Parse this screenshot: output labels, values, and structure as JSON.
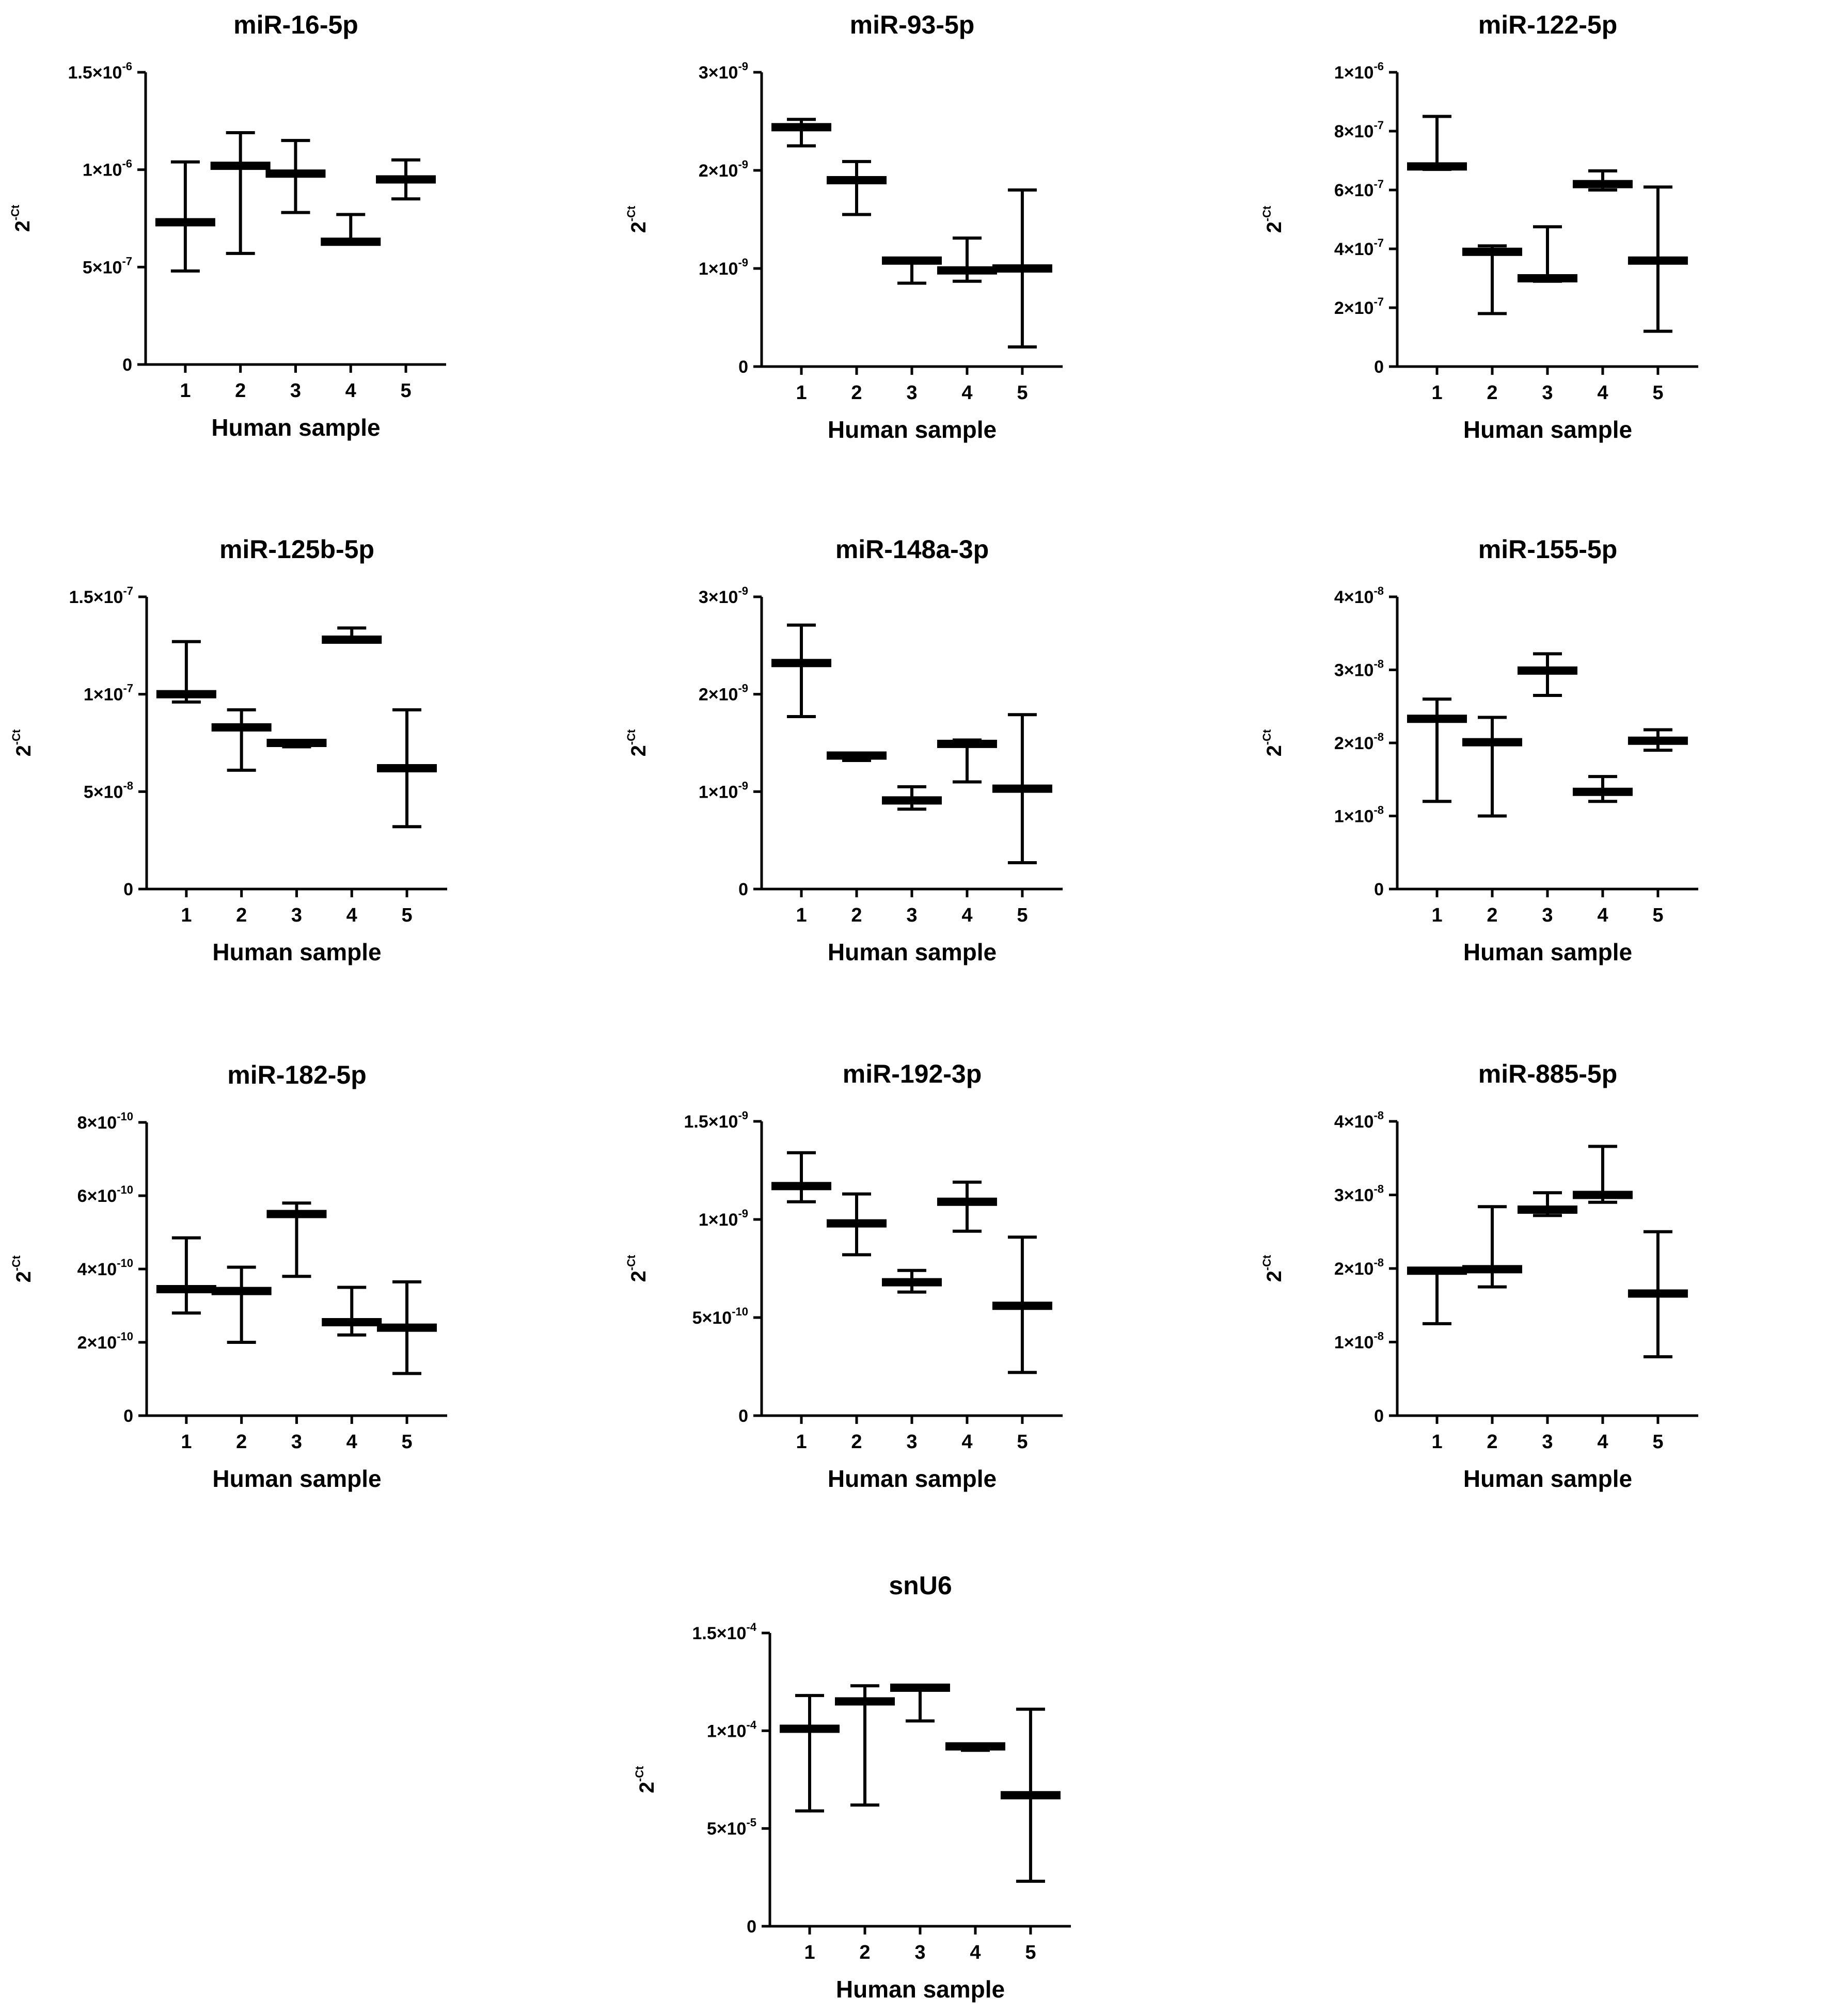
{
  "chart_data": [
    {
      "type": "box-range",
      "title": "miR-16-5p",
      "xlabel": "Human sample",
      "ylabel": {
        "base": "2",
        "sup": "-Ct"
      },
      "categories": [
        "1",
        "2",
        "3",
        "4",
        "5"
      ],
      "ylim": [
        0,
        1.5e-06
      ],
      "yticks": [
        {
          "value": 0,
          "mant": "0",
          "exp": ""
        },
        {
          "value": 5e-07,
          "mant": "5×10",
          "exp": "-7"
        },
        {
          "value": 1e-06,
          "mant": "1×10",
          "exp": "-6"
        },
        {
          "value": 1.5e-06,
          "mant": "1.5×10",
          "exp": "-6"
        }
      ],
      "series": [
        {
          "name": "range",
          "min": [
            4.8e-07,
            5.7e-07,
            7.8e-07,
            6.2e-07,
            8.5e-07
          ],
          "median": [
            7.3e-07,
            1.02e-06,
            9.8e-07,
            6.3e-07,
            9.5e-07
          ],
          "max": [
            1.04e-06,
            1.19e-06,
            1.15e-06,
            7.7e-07,
            1.05e-06
          ]
        }
      ]
    },
    {
      "type": "box-range",
      "title": "miR-93-5p",
      "xlabel": "Human sample",
      "ylabel": {
        "base": "2",
        "sup": "-Ct"
      },
      "categories": [
        "1",
        "2",
        "3",
        "4",
        "5"
      ],
      "ylim": [
        0,
        3e-09
      ],
      "yticks": [
        {
          "value": 0,
          "mant": "0",
          "exp": ""
        },
        {
          "value": 1e-09,
          "mant": "1×10",
          "exp": "-9"
        },
        {
          "value": 2e-09,
          "mant": "2×10",
          "exp": "-9"
        },
        {
          "value": 3e-09,
          "mant": "3×10",
          "exp": "-9"
        }
      ],
      "series": [
        {
          "name": "range",
          "min": [
            2.25e-09,
            1.55e-09,
            8.5e-10,
            8.7e-10,
            2e-10
          ],
          "median": [
            2.44e-09,
            1.9e-09,
            1.08e-09,
            9.8e-10,
            1e-09
          ],
          "max": [
            2.52e-09,
            2.09e-09,
            1.09e-09,
            1.31e-09,
            1.8e-09
          ]
        }
      ]
    },
    {
      "type": "box-range",
      "title": "miR-122-5p",
      "xlabel": "Human sample",
      "ylabel": {
        "base": "2",
        "sup": "-Ct"
      },
      "categories": [
        "1",
        "2",
        "3",
        "4",
        "5"
      ],
      "ylim": [
        0,
        1e-06
      ],
      "yticks": [
        {
          "value": 0,
          "mant": "0",
          "exp": ""
        },
        {
          "value": 2e-07,
          "mant": "2×10",
          "exp": "-7"
        },
        {
          "value": 4e-07,
          "mant": "4×10",
          "exp": "-7"
        },
        {
          "value": 6e-07,
          "mant": "6×10",
          "exp": "-7"
        },
        {
          "value": 8e-07,
          "mant": "8×10",
          "exp": "-7"
        },
        {
          "value": 1e-06,
          "mant": "1×10",
          "exp": "-6"
        }
      ],
      "series": [
        {
          "name": "range",
          "min": [
            6.7e-07,
            1.8e-07,
            2.9e-07,
            6e-07,
            1.2e-07
          ],
          "median": [
            6.8e-07,
            3.9e-07,
            3e-07,
            6.2e-07,
            3.6e-07
          ],
          "max": [
            8.5e-07,
            4.1e-07,
            4.75e-07,
            6.65e-07,
            6.1e-07
          ]
        }
      ]
    },
    {
      "type": "box-range",
      "title": "miR-125b-5p",
      "xlabel": "Human sample",
      "ylabel": {
        "base": "2",
        "sup": "-Ct"
      },
      "categories": [
        "1",
        "2",
        "3",
        "4",
        "5"
      ],
      "ylim": [
        0,
        1.5e-07
      ],
      "yticks": [
        {
          "value": 0,
          "mant": "0",
          "exp": ""
        },
        {
          "value": 5e-08,
          "mant": "5×10",
          "exp": "-8"
        },
        {
          "value": 1e-07,
          "mant": "1×10",
          "exp": "-7"
        },
        {
          "value": 1.5e-07,
          "mant": "1.5×10",
          "exp": "-7"
        }
      ],
      "series": [
        {
          "name": "range",
          "min": [
            9.6e-08,
            6.1e-08,
            7.3e-08,
            1.27e-07,
            3.2e-08
          ],
          "median": [
            1e-07,
            8.3e-08,
            7.5e-08,
            1.28e-07,
            6.2e-08
          ],
          "max": [
            1.27e-07,
            9.2e-08,
            7.6e-08,
            1.34e-07,
            9.2e-08
          ]
        }
      ]
    },
    {
      "type": "box-range",
      "title": "miR-148a-3p",
      "xlabel": "Human sample",
      "ylabel": {
        "base": "2",
        "sup": "-Ct"
      },
      "categories": [
        "1",
        "2",
        "3",
        "4",
        "5"
      ],
      "ylim": [
        0,
        3e-09
      ],
      "yticks": [
        {
          "value": 0,
          "mant": "0",
          "exp": ""
        },
        {
          "value": 1e-09,
          "mant": "1×10",
          "exp": "-9"
        },
        {
          "value": 2e-09,
          "mant": "2×10",
          "exp": "-9"
        },
        {
          "value": 3e-09,
          "mant": "3×10",
          "exp": "-9"
        }
      ],
      "series": [
        {
          "name": "range",
          "min": [
            1.77e-09,
            1.32e-09,
            8.2e-10,
            1.1e-09,
            2.7e-10
          ],
          "median": [
            2.32e-09,
            1.37e-09,
            9.1e-10,
            1.49e-09,
            1.03e-09
          ],
          "max": [
            2.71e-09,
            1.39e-09,
            1.05e-09,
            1.53e-09,
            1.79e-09
          ]
        }
      ]
    },
    {
      "type": "box-range",
      "title": "miR-155-5p",
      "xlabel": "Human sample",
      "ylabel": {
        "base": "2",
        "sup": "-Ct"
      },
      "categories": [
        "1",
        "2",
        "3",
        "4",
        "5"
      ],
      "ylim": [
        0,
        4e-08
      ],
      "yticks": [
        {
          "value": 0,
          "mant": "0",
          "exp": ""
        },
        {
          "value": 1e-08,
          "mant": "1×10",
          "exp": "-8"
        },
        {
          "value": 2e-08,
          "mant": "2×10",
          "exp": "-8"
        },
        {
          "value": 3e-08,
          "mant": "3×10",
          "exp": "-8"
        },
        {
          "value": 4e-08,
          "mant": "4×10",
          "exp": "-8"
        }
      ],
      "series": [
        {
          "name": "range",
          "min": [
            1.2e-08,
            1e-08,
            2.65e-08,
            1.2e-08,
            1.9e-08
          ],
          "median": [
            2.33e-08,
            2.01e-08,
            2.99e-08,
            1.33e-08,
            2.03e-08
          ],
          "max": [
            2.6e-08,
            2.35e-08,
            3.22e-08,
            1.54e-08,
            2.18e-08
          ]
        }
      ]
    },
    {
      "type": "box-range",
      "title": "miR-182-5p",
      "xlabel": "Human sample",
      "ylabel": {
        "base": "2",
        "sup": "-Ct"
      },
      "categories": [
        "1",
        "2",
        "3",
        "4",
        "5"
      ],
      "ylim": [
        0,
        8e-10
      ],
      "yticks": [
        {
          "value": 0,
          "mant": "0",
          "exp": ""
        },
        {
          "value": 2e-10,
          "mant": "2×10",
          "exp": "-10"
        },
        {
          "value": 4e-10,
          "mant": "4×10",
          "exp": "-10"
        },
        {
          "value": 6e-10,
          "mant": "6×10",
          "exp": "-10"
        },
        {
          "value": 8e-10,
          "mant": "8×10",
          "exp": "-10"
        }
      ],
      "series": [
        {
          "name": "range",
          "min": [
            2.8e-10,
            2e-10,
            3.8e-10,
            2.2e-10,
            1.15e-10
          ],
          "median": [
            3.45e-10,
            3.4e-10,
            5.5e-10,
            2.55e-10,
            2.4e-10
          ],
          "max": [
            4.85e-10,
            4.05e-10,
            5.8e-10,
            3.5e-10,
            3.65e-10
          ]
        }
      ]
    },
    {
      "type": "box-range",
      "title": "miR-192-3p",
      "xlabel": "Human sample",
      "ylabel": {
        "base": "2",
        "sup": "-Ct"
      },
      "categories": [
        "1",
        "2",
        "3",
        "4",
        "5"
      ],
      "ylim": [
        0,
        1.5e-09
      ],
      "yticks": [
        {
          "value": 0,
          "mant": "0",
          "exp": ""
        },
        {
          "value": 5e-10,
          "mant": "5×10",
          "exp": "-10"
        },
        {
          "value": 1e-09,
          "mant": "1×10",
          "exp": "-9"
        },
        {
          "value": 1.5e-09,
          "mant": "1.5×10",
          "exp": "-9"
        }
      ],
      "series": [
        {
          "name": "range",
          "min": [
            1.09e-09,
            8.2e-10,
            6.3e-10,
            9.4e-10,
            2.2e-10
          ],
          "median": [
            1.17e-09,
            9.8e-10,
            6.8e-10,
            1.09e-09,
            5.6e-10
          ],
          "max": [
            1.34e-09,
            1.13e-09,
            7.4e-10,
            1.19e-09,
            9.1e-10
          ]
        }
      ]
    },
    {
      "type": "box-range",
      "title": "miR-885-5p",
      "xlabel": "Human sample",
      "ylabel": {
        "base": "2",
        "sup": "-Ct"
      },
      "categories": [
        "1",
        "2",
        "3",
        "4",
        "5"
      ],
      "ylim": [
        0,
        4e-08
      ],
      "yticks": [
        {
          "value": 0,
          "mant": "0",
          "exp": ""
        },
        {
          "value": 1e-08,
          "mant": "1×10",
          "exp": "-8"
        },
        {
          "value": 2e-08,
          "mant": "2×10",
          "exp": "-8"
        },
        {
          "value": 3e-08,
          "mant": "3×10",
          "exp": "-8"
        },
        {
          "value": 4e-08,
          "mant": "4×10",
          "exp": "-8"
        }
      ],
      "series": [
        {
          "name": "range",
          "min": [
            1.25e-08,
            1.75e-08,
            2.72e-08,
            2.9e-08,
            8e-09
          ],
          "median": [
            1.97e-08,
            1.99e-08,
            2.8e-08,
            3e-08,
            1.66e-08
          ],
          "max": [
            2e-08,
            2.84e-08,
            3.03e-08,
            3.66e-08,
            2.5e-08
          ]
        }
      ]
    },
    {
      "type": "box-range",
      "title": "snU6",
      "xlabel": "Human sample",
      "ylabel": {
        "base": "2",
        "sup": "-Ct"
      },
      "categories": [
        "1",
        "2",
        "3",
        "4",
        "5"
      ],
      "ylim": [
        0,
        0.00015
      ],
      "yticks": [
        {
          "value": 0,
          "mant": "0",
          "exp": ""
        },
        {
          "value": 5e-05,
          "mant": "5×10",
          "exp": "-5"
        },
        {
          "value": 0.0001,
          "mant": "1×10",
          "exp": "-4"
        },
        {
          "value": 0.00015,
          "mant": "1.5×10",
          "exp": "-4"
        }
      ],
      "series": [
        {
          "name": "range",
          "min": [
            5.9e-05,
            6.2e-05,
            0.000105,
            9e-05,
            2.3e-05
          ],
          "median": [
            0.000101,
            0.000115,
            0.000122,
            9.2e-05,
            6.7e-05
          ],
          "max": [
            0.000118,
            0.000123,
            0.000123,
            9.3e-05,
            0.000111
          ]
        }
      ]
    }
  ]
}
